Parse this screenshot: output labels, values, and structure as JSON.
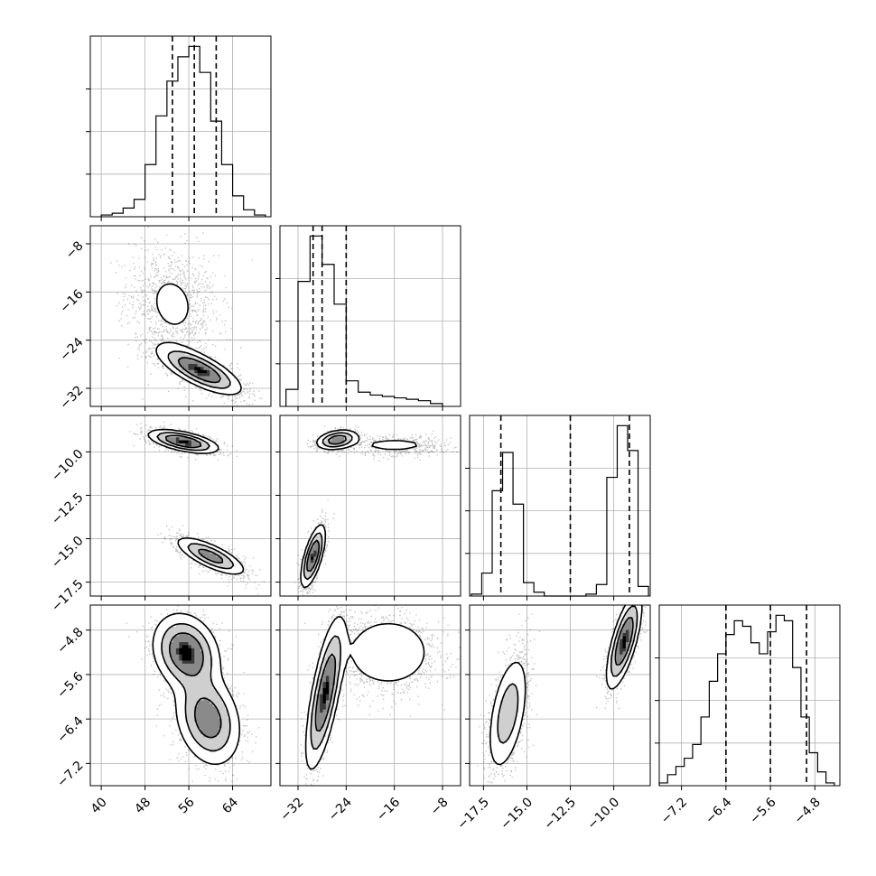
{
  "chart_data": {
    "type": "corner",
    "n_params": 4,
    "colors": {
      "hist": "#000000",
      "quantile": "#000000",
      "grid": "#b0b0b0",
      "density": "#000000"
    },
    "axes": [
      {
        "range": [
          38,
          71
        ],
        "ticks": [
          40,
          48,
          56,
          64
        ],
        "tick_labels": [
          "40",
          "48",
          "56",
          "64"
        ]
      },
      {
        "range": [
          -35,
          -5
        ],
        "ticks": [
          -32,
          -24,
          -16,
          -8
        ],
        "tick_labels": [
          "−32",
          "−24",
          "−16",
          "−8"
        ]
      },
      {
        "range": [
          -18.3,
          -7.9
        ],
        "ticks": [
          -17.5,
          -15.0,
          -12.5,
          -10.0
        ],
        "tick_labels": [
          "−17.5",
          "−15.0",
          "−12.5",
          "−10.0"
        ]
      },
      {
        "range": [
          -7.6,
          -4.35
        ],
        "ticks": [
          -7.2,
          -6.4,
          -5.6,
          -4.8
        ],
        "tick_labels": [
          "−7.2",
          "−6.4",
          "−5.6",
          "−4.8"
        ]
      }
    ],
    "histograms": [
      {
        "param": 0,
        "bin_edges": [
          40,
          42,
          44,
          46,
          48,
          50,
          52,
          54,
          56,
          58,
          60,
          62,
          64,
          66,
          68,
          70
        ],
        "counts": [
          1,
          2,
          5,
          10,
          30,
          58,
          78,
          92,
          98,
          83,
          55,
          30,
          12,
          4,
          1
        ],
        "quantiles": [
          53,
          57,
          61
        ]
      },
      {
        "param": 1,
        "bin_edges": [
          -34,
          -32,
          -30,
          -28,
          -26,
          -24,
          -22,
          -20,
          -18,
          -16,
          -14,
          -12,
          -10,
          -8
        ],
        "counts": [
          12,
          88,
          120,
          100,
          72,
          18,
          10,
          8,
          7,
          6,
          5,
          4,
          2
        ],
        "quantiles": [
          -29.5,
          -28,
          -24
        ]
      },
      {
        "param": 2,
        "bin_edges": [
          -18.2,
          -17.6,
          -17.0,
          -16.4,
          -15.8,
          -15.2,
          -14.6,
          -14.0,
          -13.4,
          -12.8,
          -12.2,
          -11.6,
          -11.0,
          -10.4,
          -9.8,
          -9.2,
          -8.6,
          -8.0
        ],
        "counts": [
          1,
          12,
          55,
          75,
          48,
          7,
          2,
          0,
          0,
          0,
          0,
          1,
          6,
          62,
          89,
          76,
          5
        ],
        "quantiles": [
          -16.5,
          -12.5,
          -9.1
        ]
      },
      {
        "param": 3,
        "bin_edges": [
          -7.6,
          -7.45,
          -7.3,
          -7.15,
          -7.0,
          -6.85,
          -6.7,
          -6.55,
          -6.4,
          -6.25,
          -6.1,
          -5.95,
          -5.8,
          -5.65,
          -5.5,
          -5.35,
          -5.2,
          -5.05,
          -4.9,
          -4.75,
          -4.6,
          -4.45
        ],
        "counts": [
          1,
          4,
          7,
          10,
          15,
          25,
          38,
          48,
          55,
          60,
          58,
          52,
          48,
          56,
          62,
          60,
          43,
          25,
          12,
          5,
          1
        ],
        "quantiles": [
          -6.4,
          -5.6,
          -4.95
        ]
      }
    ],
    "pairs": [
      {
        "xi": 0,
        "yi": 1,
        "components": [
          {
            "weight": 0.62,
            "mean": [
              58,
              -29
            ],
            "cov": [
              [
                14,
                -5.5
              ],
              [
                -5.5,
                4
              ]
            ]
          },
          {
            "weight": 0.38,
            "mean": [
              53,
              -18
            ],
            "cov": [
              [
                16,
                -3
              ],
              [
                -3,
                22
              ]
            ]
          }
        ]
      },
      {
        "xi": 0,
        "yi": 2,
        "components": [
          {
            "weight": 0.5,
            "mean": [
              55,
              -9.4
            ],
            "cov": [
              [
                10,
                -0.6
              ],
              [
                -0.6,
                0.11
              ]
            ]
          },
          {
            "weight": 0.5,
            "mean": [
              60,
              -16.0
            ],
            "cov": [
              [
                10,
                -1.3
              ],
              [
                -1.3,
                0.3
              ]
            ]
          }
        ]
      },
      {
        "xi": 1,
        "yi": 2,
        "components": [
          {
            "weight": 0.3,
            "mean": [
              -25.5,
              -9.3
            ],
            "cov": [
              [
                3,
                0.15
              ],
              [
                0.15,
                0.08
              ]
            ]
          },
          {
            "weight": 0.2,
            "mean": [
              -16,
              -9.6
            ],
            "cov": [
              [
                22,
                0
              ],
              [
                0,
                0.1
              ]
            ]
          },
          {
            "weight": 0.5,
            "mean": [
              -29.5,
              -16.0
            ],
            "cov": [
              [
                1,
                0.6
              ],
              [
                0.6,
                0.8
              ]
            ]
          }
        ]
      },
      {
        "xi": 0,
        "yi": 3,
        "components": [
          {
            "weight": 0.5,
            "mean": [
              55.5,
              -5.2
            ],
            "cov": [
              [
                9,
                -0.2
              ],
              [
                -0.2,
                0.12
              ]
            ]
          },
          {
            "weight": 0.5,
            "mean": [
              59.5,
              -6.4
            ],
            "cov": [
              [
                9,
                -0.3
              ],
              [
                -0.3,
                0.18
              ]
            ]
          }
        ]
      },
      {
        "xi": 1,
        "yi": 3,
        "components": [
          {
            "weight": 0.58,
            "mean": [
              -27.5,
              -5.95
            ],
            "cov": [
              [
                2.5,
                0.75
              ],
              [
                0.75,
                0.45
              ]
            ]
          },
          {
            "weight": 0.42,
            "mean": [
              -17,
              -5.2
            ],
            "cov": [
              [
                20,
                0
              ],
              [
                0,
                0.15
              ]
            ]
          }
        ]
      },
      {
        "xi": 2,
        "yi": 3,
        "components": [
          {
            "weight": 0.5,
            "mean": [
              -16.1,
              -6.3
            ],
            "cov": [
              [
                0.36,
                0.16
              ],
              [
                0.16,
                0.3
              ]
            ]
          },
          {
            "weight": 0.5,
            "mean": [
              -9.4,
              -5.0
            ],
            "cov": [
              [
                0.25,
                0.15
              ],
              [
                0.15,
                0.18
              ]
            ]
          }
        ]
      }
    ]
  }
}
